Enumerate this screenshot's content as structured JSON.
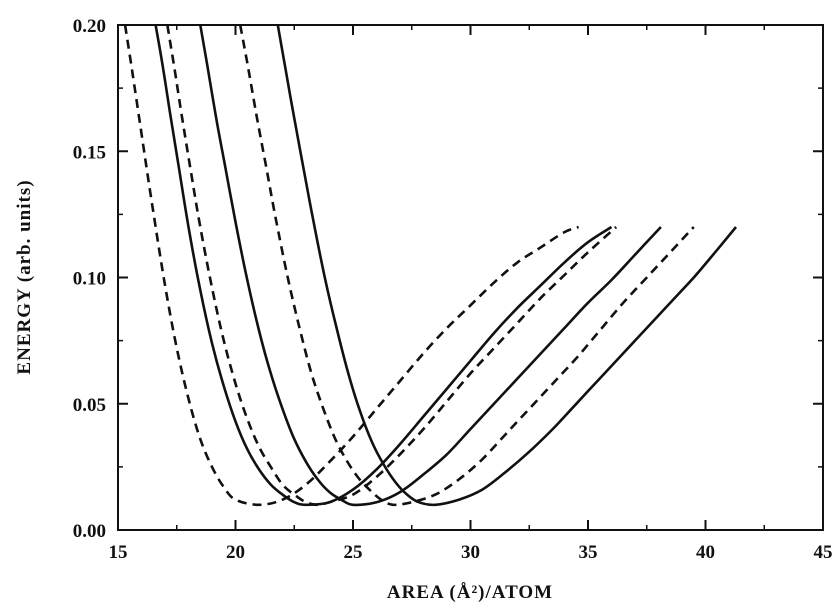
{
  "chart_data": {
    "type": "line",
    "title": "",
    "xlabel": "AREA (Å²)/ATOM",
    "ylabel": "ENERGY (arb. units)",
    "xlim": [
      15,
      45
    ],
    "ylim": [
      0.0,
      0.2
    ],
    "x_ticks": [
      15,
      20,
      25,
      30,
      35,
      40,
      45
    ],
    "x_tick_labels": [
      "15",
      "20",
      "25",
      "30",
      "35",
      "40",
      "45"
    ],
    "y_ticks": [
      0.0,
      0.05,
      0.1,
      0.15,
      0.2
    ],
    "y_tick_labels": [
      "0.00",
      "0.05",
      "0.10",
      "0.15",
      "0.20"
    ],
    "grid": false,
    "legend": "none",
    "series": [
      {
        "style": "dashed",
        "x": [
          15.3,
          15.6,
          16.0,
          16.5,
          17.0,
          17.5,
          18.0,
          18.5,
          19.0,
          19.5,
          20.0,
          21.0,
          22.0,
          23.0,
          24.0,
          25.0,
          26.0,
          27.0,
          28.0,
          29.0,
          30.0,
          31.0,
          32.0,
          33.0,
          34.0,
          34.6
        ],
        "y": [
          0.2,
          0.182,
          0.157,
          0.126,
          0.097,
          0.072,
          0.052,
          0.036,
          0.025,
          0.017,
          0.012,
          0.01,
          0.012,
          0.018,
          0.027,
          0.037,
          0.048,
          0.059,
          0.07,
          0.08,
          0.089,
          0.098,
          0.106,
          0.112,
          0.118,
          0.12
        ]
      },
      {
        "style": "solid",
        "x": [
          16.6,
          16.9,
          17.2,
          17.6,
          18.0,
          18.5,
          19.0,
          19.5,
          20.0,
          20.5,
          21.0,
          21.5,
          22.0,
          22.5,
          23.0,
          24.0,
          25.0,
          26.0,
          27.0,
          28.0,
          29.0,
          30.0,
          31.0,
          32.0,
          33.0,
          34.0,
          35.0,
          36.0
        ],
        "y": [
          0.2,
          0.184,
          0.166,
          0.143,
          0.12,
          0.095,
          0.074,
          0.057,
          0.043,
          0.032,
          0.024,
          0.018,
          0.014,
          0.011,
          0.01,
          0.011,
          0.016,
          0.024,
          0.034,
          0.045,
          0.056,
          0.067,
          0.078,
          0.088,
          0.097,
          0.106,
          0.114,
          0.12
        ]
      },
      {
        "style": "dashed",
        "x": [
          17.1,
          17.4,
          17.7,
          18.1,
          18.5,
          19.0,
          19.5,
          20.0,
          20.5,
          21.0,
          21.5,
          22.0,
          22.5,
          23.0,
          23.5,
          24.0,
          25.0,
          26.0,
          27.0,
          28.0,
          29.0,
          30.0,
          31.0,
          32.0,
          33.0,
          34.0,
          35.0,
          36.2
        ],
        "y": [
          0.2,
          0.183,
          0.165,
          0.142,
          0.12,
          0.096,
          0.075,
          0.058,
          0.044,
          0.033,
          0.025,
          0.018,
          0.014,
          0.011,
          0.01,
          0.011,
          0.014,
          0.021,
          0.03,
          0.04,
          0.051,
          0.062,
          0.072,
          0.082,
          0.092,
          0.101,
          0.11,
          0.12
        ]
      },
      {
        "style": "solid",
        "x": [
          18.5,
          18.8,
          19.2,
          19.6,
          20.0,
          20.5,
          21.0,
          21.5,
          22.0,
          22.5,
          23.0,
          23.5,
          24.0,
          24.5,
          25.0,
          26.0,
          27.0,
          28.0,
          29.0,
          30.0,
          31.0,
          32.0,
          33.0,
          34.0,
          35.0,
          36.0,
          37.0,
          38.1
        ],
        "y": [
          0.2,
          0.184,
          0.162,
          0.142,
          0.122,
          0.099,
          0.079,
          0.062,
          0.048,
          0.036,
          0.027,
          0.02,
          0.015,
          0.012,
          0.01,
          0.011,
          0.015,
          0.022,
          0.03,
          0.04,
          0.05,
          0.06,
          0.07,
          0.08,
          0.09,
          0.099,
          0.109,
          0.12
        ]
      },
      {
        "style": "dashed",
        "x": [
          20.2,
          20.5,
          20.9,
          21.3,
          21.7,
          22.2,
          22.7,
          23.2,
          23.7,
          24.2,
          24.7,
          25.2,
          25.7,
          26.2,
          26.7,
          27.5,
          28.5,
          29.5,
          30.5,
          31.5,
          32.5,
          33.5,
          34.5,
          35.5,
          36.5,
          37.5,
          38.5,
          39.5
        ],
        "y": [
          0.2,
          0.185,
          0.164,
          0.144,
          0.124,
          0.101,
          0.081,
          0.063,
          0.049,
          0.037,
          0.028,
          0.021,
          0.016,
          0.012,
          0.01,
          0.011,
          0.014,
          0.02,
          0.028,
          0.038,
          0.048,
          0.058,
          0.068,
          0.079,
          0.09,
          0.1,
          0.11,
          0.12
        ]
      },
      {
        "style": "solid",
        "x": [
          21.8,
          22.1,
          22.5,
          22.9,
          23.3,
          23.8,
          24.3,
          24.8,
          25.3,
          25.8,
          26.3,
          26.8,
          27.3,
          27.8,
          28.5,
          29.5,
          30.5,
          31.5,
          32.5,
          33.5,
          34.5,
          35.5,
          36.5,
          37.5,
          38.5,
          39.5,
          40.5,
          41.3
        ],
        "y": [
          0.2,
          0.184,
          0.163,
          0.143,
          0.123,
          0.1,
          0.08,
          0.062,
          0.047,
          0.035,
          0.026,
          0.019,
          0.014,
          0.011,
          0.01,
          0.012,
          0.016,
          0.023,
          0.031,
          0.04,
          0.05,
          0.06,
          0.07,
          0.08,
          0.09,
          0.1,
          0.111,
          0.12
        ]
      }
    ]
  }
}
